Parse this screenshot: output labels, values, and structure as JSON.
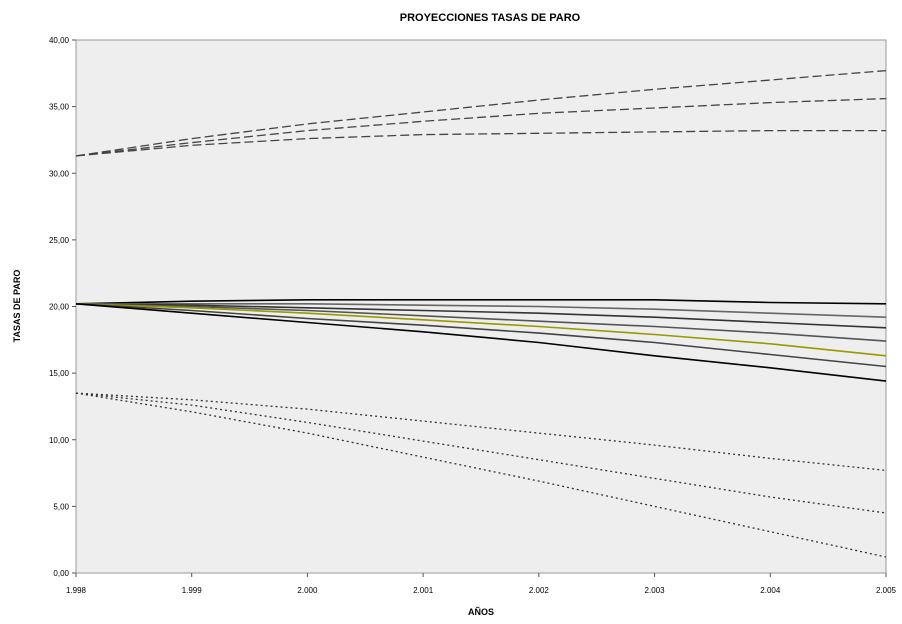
{
  "chart_data": {
    "type": "line",
    "title": "PROYECCIONES TASAS DE PARO",
    "xlabel": "AÑOS",
    "ylabel": "TASAS DE PARO",
    "x": [
      1998,
      1999,
      2000,
      2001,
      2002,
      2003,
      2004,
      2005
    ],
    "x_tick_labels": [
      "1.998",
      "1.999",
      "2.000",
      "2.001",
      "2.002",
      "2.003",
      "2.004",
      "2.005"
    ],
    "y_tick_labels": [
      "0,00",
      "5,00",
      "10,00",
      "15,00",
      "20,00",
      "25,00",
      "30,00",
      "35,00",
      "40,00"
    ],
    "xlim": [
      1998,
      2005
    ],
    "ylim": [
      0,
      40
    ],
    "grid": false,
    "plot_background": "#eeeeee",
    "series": [
      {
        "style": "dashed",
        "color": "#444444",
        "values": [
          31.3,
          32.6,
          33.7,
          34.6,
          35.5,
          36.3,
          37.0,
          37.7
        ]
      },
      {
        "style": "dashed",
        "color": "#444444",
        "values": [
          31.3,
          32.3,
          33.2,
          33.9,
          34.5,
          34.9,
          35.3,
          35.6
        ]
      },
      {
        "style": "dashed",
        "color": "#444444",
        "values": [
          31.3,
          32.1,
          32.6,
          32.9,
          33.0,
          33.1,
          33.2,
          33.2
        ]
      },
      {
        "style": "solid",
        "color": "#000000",
        "values": [
          20.2,
          20.4,
          20.5,
          20.5,
          20.5,
          20.5,
          20.3,
          20.2
        ]
      },
      {
        "style": "solid",
        "color": "#666666",
        "values": [
          20.2,
          20.2,
          20.2,
          20.1,
          20.0,
          19.8,
          19.5,
          19.2
        ]
      },
      {
        "style": "solid",
        "color": "#333333",
        "values": [
          20.2,
          20.1,
          19.9,
          19.7,
          19.5,
          19.2,
          18.8,
          18.4
        ]
      },
      {
        "style": "solid",
        "color": "#555555",
        "values": [
          20.2,
          20.0,
          19.7,
          19.3,
          18.9,
          18.5,
          18.0,
          17.4
        ]
      },
      {
        "style": "solid",
        "color": "#999900",
        "values": [
          20.2,
          19.9,
          19.5,
          19.0,
          18.5,
          17.9,
          17.2,
          16.3
        ]
      },
      {
        "style": "solid",
        "color": "#444444",
        "values": [
          20.2,
          19.7,
          19.1,
          18.6,
          18.0,
          17.3,
          16.4,
          15.5
        ]
      },
      {
        "style": "solid",
        "color": "#000000",
        "values": [
          20.2,
          19.5,
          18.8,
          18.1,
          17.3,
          16.3,
          15.4,
          14.4
        ]
      },
      {
        "style": "dotted",
        "color": "#333333",
        "values": [
          13.5,
          13.0,
          12.3,
          11.4,
          10.5,
          9.6,
          8.6,
          7.7
        ]
      },
      {
        "style": "dotted",
        "color": "#333333",
        "values": [
          13.5,
          12.6,
          11.3,
          9.9,
          8.5,
          7.1,
          5.7,
          4.5
        ]
      },
      {
        "style": "dotted",
        "color": "#333333",
        "values": [
          13.5,
          12.1,
          10.5,
          8.7,
          6.9,
          5.0,
          3.1,
          1.2
        ]
      }
    ]
  }
}
